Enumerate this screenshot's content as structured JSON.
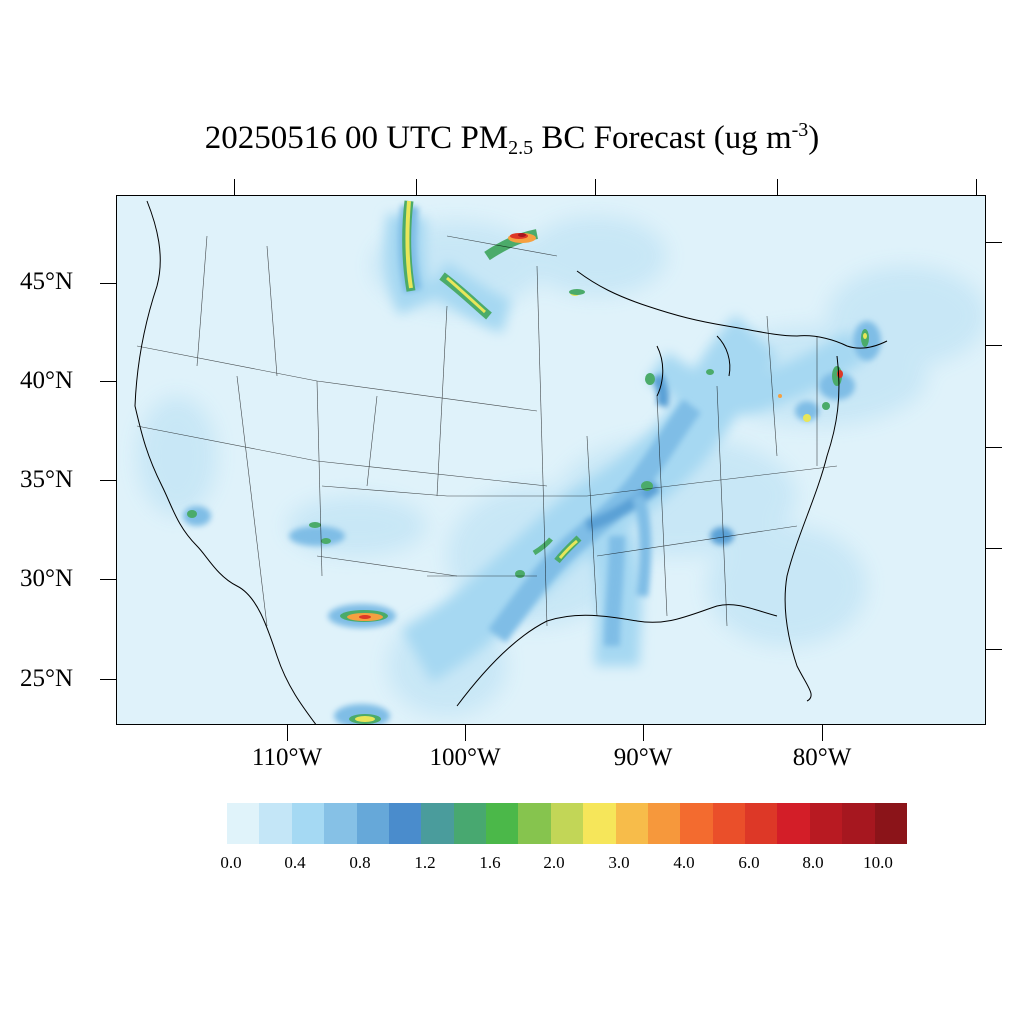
{
  "title": {
    "prefix": "20250516 00 UTC PM",
    "subscript": "2.5",
    "middle": " BC Forecast (ug m",
    "superscript": "-3",
    "suffix": ")"
  },
  "lat_labels": [
    "45°N",
    "40°N",
    "35°N",
    "30°N",
    "25°N"
  ],
  "lon_labels": [
    "110°W",
    "100°W",
    "90°W",
    "80°W"
  ],
  "colorbar": {
    "colors": [
      "#e0f3fa",
      "#c4e6f7",
      "#a5d9f3",
      "#86c1e6",
      "#66a8d9",
      "#4a8ccc",
      "#4a9c9c",
      "#48a870",
      "#4bb849",
      "#86c44e",
      "#c2d657",
      "#f6e65a",
      "#f7bc4a",
      "#f6983c",
      "#f36b2f",
      "#ea4f2a",
      "#dd3827",
      "#d31e28",
      "#b81a22",
      "#a6171f",
      "#8b1419"
    ],
    "labels": [
      "0.0",
      "0.4",
      "0.8",
      "1.2",
      "1.6",
      "2.0",
      "3.0",
      "4.0",
      "6.0",
      "8.0",
      "10.0"
    ]
  },
  "map": {
    "background_color": "#dff2fa",
    "plume_colors": {
      "light": "#c6e6f6",
      "mid": "#a6d8f2",
      "blue": "#7fbde6",
      "deep": "#5aa0d6",
      "green": "#4bab6a",
      "yellow": "#e8e65a",
      "orange": "#f6a040",
      "red": "#dd3827",
      "darkred": "#a6171f"
    }
  }
}
